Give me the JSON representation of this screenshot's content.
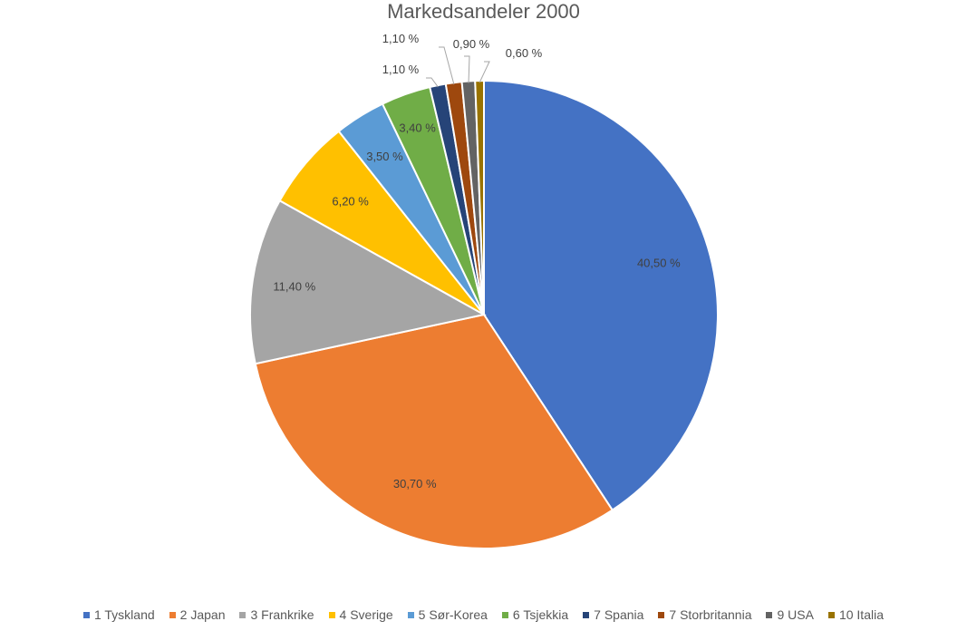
{
  "chart_data": {
    "type": "pie",
    "title": "Markedsandeler 2000",
    "legend_position": "bottom",
    "slices": [
      {
        "name": "1 Tyskland",
        "value": 40.5,
        "label": "40,50 %",
        "color": "#4472C4"
      },
      {
        "name": "2 Japan",
        "value": 30.7,
        "label": "30,70 %",
        "color": "#ED7D31"
      },
      {
        "name": "3 Frankrike",
        "value": 11.4,
        "label": "11,40 %",
        "color": "#A5A5A5"
      },
      {
        "name": "4 Sverige",
        "value": 6.2,
        "label": "6,20 %",
        "color": "#FFC000"
      },
      {
        "name": "5 Sør-Korea",
        "value": 3.5,
        "label": "3,50 %",
        "color": "#5B9BD5"
      },
      {
        "name": "6 Tsjekkia",
        "value": 3.4,
        "label": "3,40 %",
        "color": "#70AD47"
      },
      {
        "name": "7 Spania",
        "value": 1.1,
        "label": "1,10 %",
        "color": "#264478"
      },
      {
        "name": "7 Storbritannia",
        "value": 1.1,
        "label": "1,10 %",
        "color": "#9E480E"
      },
      {
        "name": "9 USA",
        "value": 0.9,
        "label": "0,90 %",
        "color": "#636363"
      },
      {
        "name": "10 Italia",
        "value": 0.6,
        "label": "0,60 %",
        "color": "#997300"
      }
    ]
  }
}
